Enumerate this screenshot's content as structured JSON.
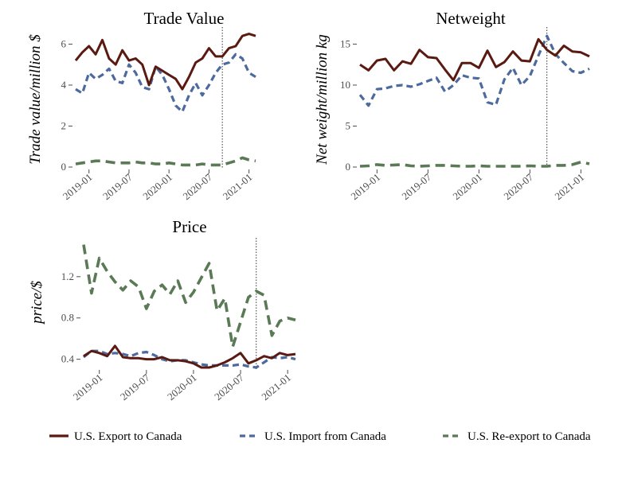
{
  "chart_data": [
    {
      "type": "line",
      "title": "Trade Value",
      "ylabel": "Trade value/million $",
      "xlabel": "",
      "ylim": [
        0,
        6.6
      ],
      "yticks": [
        0,
        2,
        4,
        6
      ],
      "xticks": [
        "2019-01",
        "2019-07",
        "2020-01",
        "2020-07",
        "2021-01"
      ],
      "vline": "2020-09",
      "x": [
        "2018-11",
        "2018-12",
        "2019-01",
        "2019-02",
        "2019-03",
        "2019-04",
        "2019-05",
        "2019-06",
        "2019-07",
        "2019-08",
        "2019-09",
        "2019-10",
        "2019-11",
        "2019-12",
        "2020-01",
        "2020-02",
        "2020-03",
        "2020-04",
        "2020-05",
        "2020-06",
        "2020-07",
        "2020-08",
        "2020-09",
        "2020-10",
        "2020-11",
        "2020-12",
        "2021-01",
        "2021-02"
      ],
      "series": [
        {
          "name": "U.S. Export to Canada",
          "values": [
            5.2,
            5.6,
            5.9,
            5.5,
            6.2,
            5.3,
            5.0,
            5.7,
            5.2,
            5.3,
            5.0,
            4.0,
            4.9,
            4.7,
            4.5,
            4.3,
            3.8,
            4.4,
            5.1,
            5.3,
            5.8,
            5.4,
            5.4,
            5.8,
            5.9,
            6.4,
            6.5,
            6.4
          ]
        },
        {
          "name": "U.S. Import from Canada",
          "values": [
            3.8,
            3.6,
            4.6,
            4.3,
            4.5,
            4.8,
            4.2,
            4.1,
            5.0,
            4.6,
            3.9,
            3.8,
            4.9,
            4.5,
            3.8,
            3.0,
            2.7,
            3.5,
            4.1,
            3.5,
            4.0,
            4.6,
            5.0,
            5.1,
            5.5,
            5.3,
            4.6,
            4.4
          ]
        },
        {
          "name": "U.S. Re-export to Canada",
          "values": [
            0.15,
            0.2,
            0.25,
            0.3,
            0.3,
            0.25,
            0.2,
            0.2,
            0.2,
            0.25,
            0.2,
            0.2,
            0.15,
            0.15,
            0.2,
            0.15,
            0.1,
            0.1,
            0.1,
            0.15,
            0.1,
            0.1,
            0.1,
            0.2,
            0.3,
            0.45,
            0.35,
            0.3
          ]
        }
      ]
    },
    {
      "type": "line",
      "title": "Netweight",
      "ylabel": "Net weight/million kg",
      "xlabel": "",
      "ylim": [
        0,
        16.5
      ],
      "yticks": [
        0,
        5,
        10,
        15
      ],
      "xticks": [
        "2019-01",
        "2019-07",
        "2020-01",
        "2020-07",
        "2021-01"
      ],
      "vline": "2020-09",
      "x": [
        "2018-11",
        "2018-12",
        "2019-01",
        "2019-02",
        "2019-03",
        "2019-04",
        "2019-05",
        "2019-06",
        "2019-07",
        "2019-08",
        "2019-09",
        "2019-10",
        "2019-11",
        "2019-12",
        "2020-01",
        "2020-02",
        "2020-03",
        "2020-04",
        "2020-05",
        "2020-06",
        "2020-07",
        "2020-08",
        "2020-09",
        "2020-10",
        "2020-11",
        "2020-12",
        "2021-01",
        "2021-02"
      ],
      "series": [
        {
          "name": "U.S. Export to Canada",
          "values": [
            12.5,
            11.8,
            13.0,
            13.2,
            11.8,
            12.9,
            12.6,
            14.3,
            13.4,
            13.3,
            11.9,
            10.6,
            12.7,
            12.7,
            12.1,
            14.2,
            12.2,
            12.8,
            14.1,
            13.0,
            12.9,
            15.6,
            14.3,
            13.6,
            14.8,
            14.1,
            14.0,
            13.5
          ]
        },
        {
          "name": "U.S. Import from Canada",
          "values": [
            8.8,
            7.5,
            9.5,
            9.6,
            9.9,
            10.0,
            9.8,
            10.1,
            10.5,
            10.9,
            9.2,
            10.0,
            11.2,
            10.9,
            10.8,
            7.9,
            7.6,
            10.7,
            12.1,
            10.0,
            11.1,
            13.6,
            16.0,
            13.8,
            12.7,
            11.7,
            11.5,
            12.0
          ]
        },
        {
          "name": "U.S. Re-export to Canada",
          "values": [
            0.1,
            0.15,
            0.3,
            0.2,
            0.25,
            0.3,
            0.15,
            0.1,
            0.15,
            0.2,
            0.2,
            0.15,
            0.1,
            0.1,
            0.15,
            0.1,
            0.1,
            0.1,
            0.1,
            0.1,
            0.15,
            0.1,
            0.1,
            0.2,
            0.2,
            0.3,
            0.6,
            0.4
          ]
        }
      ]
    },
    {
      "type": "line",
      "title": "Price",
      "ylabel": "price/$",
      "xlabel": "",
      "ylim": [
        0.32,
        1.53
      ],
      "yticks": [
        0.4,
        0.8,
        1.2
      ],
      "xticks": [
        "2019-01",
        "2019-07",
        "2020-01",
        "2020-07",
        "2021-01"
      ],
      "vline": "2020-09",
      "x": [
        "2018-11",
        "2018-12",
        "2019-01",
        "2019-02",
        "2019-03",
        "2019-04",
        "2019-05",
        "2019-06",
        "2019-07",
        "2019-08",
        "2019-09",
        "2019-10",
        "2019-11",
        "2019-12",
        "2020-01",
        "2020-02",
        "2020-03",
        "2020-04",
        "2020-05",
        "2020-06",
        "2020-07",
        "2020-08",
        "2020-09",
        "2020-10",
        "2020-11",
        "2020-12",
        "2021-01",
        "2021-02"
      ],
      "series": [
        {
          "name": "U.S. Export to Canada",
          "values": [
            0.43,
            0.48,
            0.46,
            0.43,
            0.53,
            0.42,
            0.41,
            0.41,
            0.4,
            0.4,
            0.42,
            0.39,
            0.39,
            0.38,
            0.36,
            0.31,
            0.32,
            0.34,
            0.37,
            0.41,
            0.46,
            0.36,
            0.39,
            0.43,
            0.41,
            0.46,
            0.44,
            0.45
          ]
        },
        {
          "name": "U.S. Import from Canada",
          "values": [
            0.42,
            0.48,
            0.48,
            0.45,
            0.46,
            0.45,
            0.43,
            0.46,
            0.47,
            0.44,
            0.4,
            0.38,
            0.39,
            0.39,
            0.37,
            0.35,
            0.34,
            0.34,
            0.34,
            0.34,
            0.35,
            0.33,
            0.32,
            0.37,
            0.42,
            0.41,
            0.42,
            0.4
          ]
        },
        {
          "name": "U.S. Re-export to Canada",
          "values": [
            1.51,
            1.04,
            1.38,
            1.25,
            1.15,
            1.07,
            1.16,
            1.1,
            0.89,
            1.06,
            1.12,
            1.03,
            1.16,
            0.95,
            1.05,
            1.19,
            1.33,
            0.87,
            0.99,
            0.52,
            0.76,
            1.0,
            1.06,
            1.02,
            0.63,
            0.77,
            0.8,
            0.78
          ]
        }
      ]
    }
  ],
  "legend": {
    "position": "bottom",
    "items": [
      {
        "label": "U.S. Export to Canada",
        "color": "#5a1a12",
        "dash": "solid"
      },
      {
        "label": "U.S. Import from Canada",
        "color": "#4d6a9e",
        "dash": "dashed"
      },
      {
        "label": "U.S. Re-export to Canada",
        "color": "#5a7a55",
        "dash": "dashed"
      }
    ]
  }
}
